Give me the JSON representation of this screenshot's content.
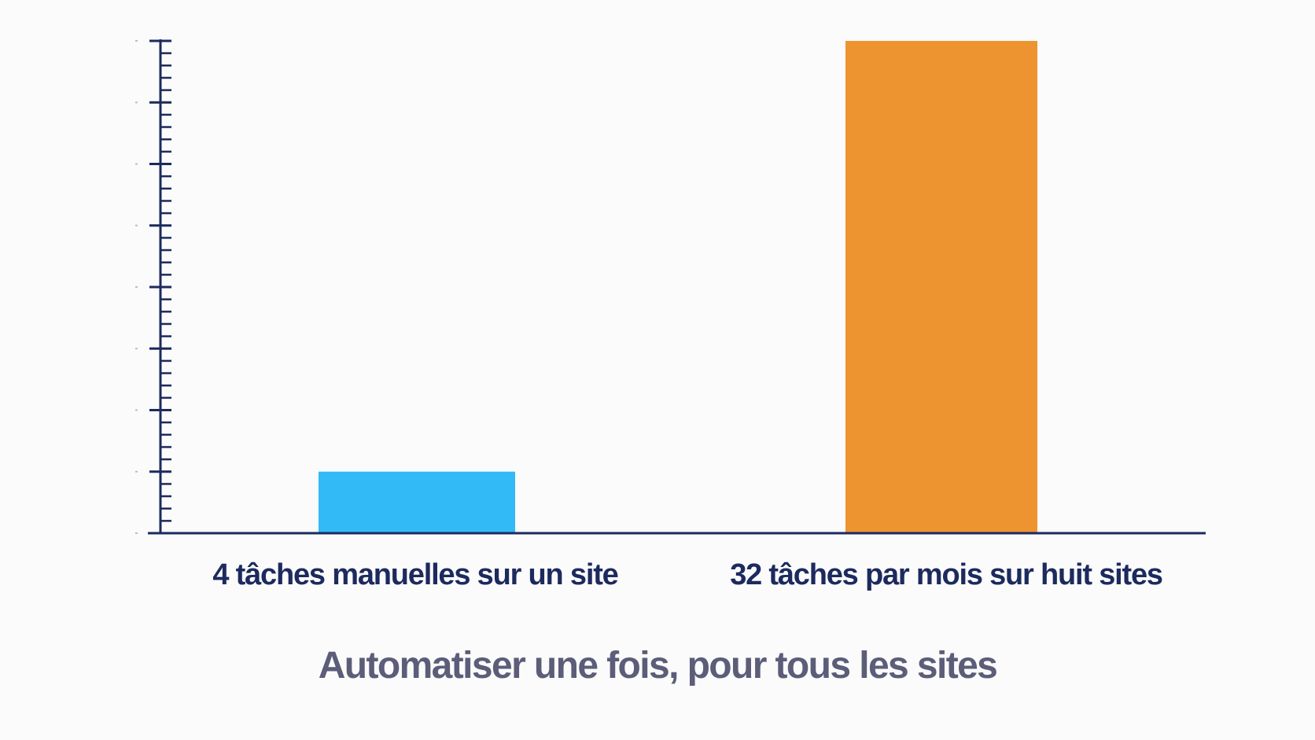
{
  "chart_data": {
    "type": "bar",
    "categories": [
      "4 tâches manuelles sur un site",
      "32 tâches par mois sur huit sites"
    ],
    "values": [
      4,
      32
    ],
    "ylim": [
      0,
      32
    ],
    "major_tick_step": 4,
    "minor_ticks_per_major": 5,
    "ytick_labels_visible": false,
    "grid": false,
    "xlabel": "",
    "ylabel": "",
    "caption": "Automatiser une fois, pour tous les sites",
    "colors": {
      "bars": [
        "#31baf5",
        "#ed9431"
      ],
      "axis": "#1c2a5e",
      "category_text": "#1c2a5e",
      "caption_text": "#5c5d79",
      "background": "#fbfbfb"
    }
  }
}
